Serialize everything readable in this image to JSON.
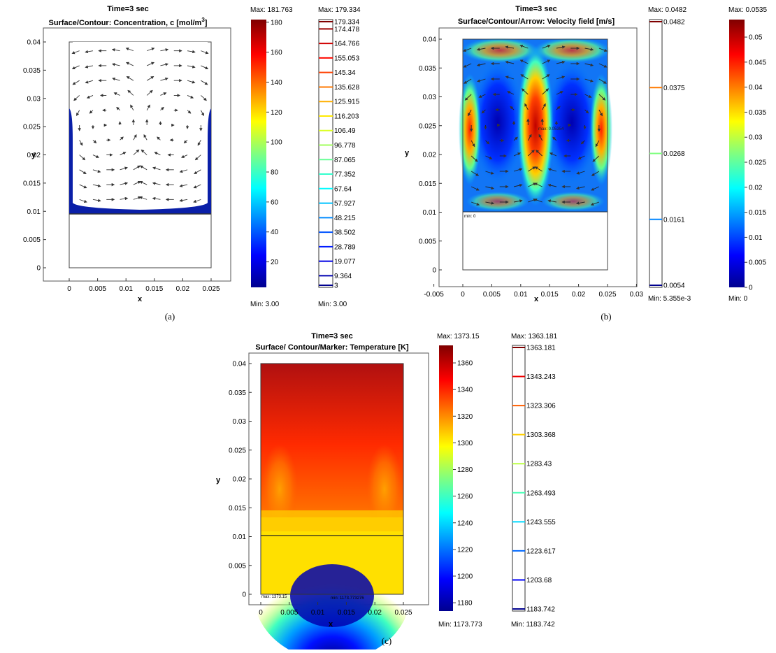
{
  "panels": {
    "a": {
      "label": "(a)",
      "time": "Time=3 sec",
      "title": "Surface/Contour: Concentration, c [mol/m",
      "title_sup": "3",
      "title_end": "]",
      "ylabel": "y",
      "xlabel": "x",
      "xticks": [
        "0",
        "0.005",
        "0.01",
        "0.015",
        "0.02",
        "0.025"
      ],
      "yticks": [
        "0",
        "0.005",
        "0.01",
        "0.015",
        "0.02",
        "0.025",
        "0.03",
        "0.035",
        "0.04"
      ],
      "surface_bar": {
        "max_label": "Max: 181.763",
        "min_label": "Min: 3.00",
        "ticks": [
          "20",
          "40",
          "60",
          "80",
          "100",
          "120",
          "140",
          "160",
          "180"
        ]
      },
      "contour_bar": {
        "max_label": "Max: 179.334",
        "min_label": "Min: 3.00",
        "levels": [
          "179.334",
          "174.478",
          "164.766",
          "155.053",
          "145.34",
          "135.628",
          "125.915",
          "116.203",
          "106.49",
          "96.778",
          "87.065",
          "77.352",
          "67.64",
          "57.927",
          "48.215",
          "38.502",
          "28.789",
          "19.077",
          "9.364",
          "3"
        ]
      }
    },
    "b": {
      "label": "(b)",
      "time": "Time=3 sec",
      "title": "Surface/Contour/Arrow: Velocity field [m/s]",
      "ylabel": "y",
      "xlabel": "x",
      "xticks": [
        "-0.005",
        "0",
        "0.005",
        "0.01",
        "0.015",
        "0.02",
        "0.025",
        "0.03"
      ],
      "yticks": [
        "0",
        "0.005",
        "0.01",
        "0.015",
        "0.02",
        "0.025",
        "0.03",
        "0.035",
        "0.04"
      ],
      "marker_min": "min: 0",
      "marker_max": "max: 0.05354",
      "contour_bar": {
        "max_label": "Max: 0.0482",
        "min_label": "Min: 5.355e-3",
        "levels": [
          "0.0482",
          "0.0375",
          "0.0268",
          "0.0161",
          "0.0054"
        ]
      },
      "surface_bar": {
        "max_label": "Max: 0.0535",
        "min_label": "Min: 0",
        "ticks": [
          "0",
          "0.005",
          "0.01",
          "0.015",
          "0.02",
          "0.025",
          "0.03",
          "0.035",
          "0.04",
          "0.045",
          "0.05"
        ]
      }
    },
    "c": {
      "label": "(c)",
      "time": "Time=3 sec",
      "title": "Surface/ Contour/Marker: Temperature [K]",
      "ylabel": "y",
      "xlabel": "x",
      "xticks": [
        "0",
        "0.005",
        "0.01",
        "0.015",
        "0.02",
        "0.025"
      ],
      "yticks": [
        "0",
        "0.005",
        "0.01",
        "0.015",
        "0.02",
        "0.025",
        "0.03",
        "0.035",
        "0.04"
      ],
      "marker_max": "max: 1373.15",
      "marker_min": "min: 1173.773276",
      "surface_bar": {
        "max_label": "Max: 1373.15",
        "min_label": "Min: 1173.773",
        "ticks": [
          "1180",
          "1200",
          "1220",
          "1240",
          "1260",
          "1280",
          "1300",
          "1320",
          "1340",
          "1360"
        ]
      },
      "contour_bar": {
        "max_label": "Max: 1363.181",
        "min_label": "Min: 1183.742",
        "levels": [
          "1363.181",
          "1343.243",
          "1323.306",
          "1303.368",
          "1283.43",
          "1263.493",
          "1243.555",
          "1223.617",
          "1203.68",
          "1183.742"
        ]
      }
    }
  },
  "chart_data": [
    {
      "type": "heatmap",
      "panel": "a",
      "title": "Surface/Contour: Concentration, c [mol/m3]",
      "xlabel": "x",
      "ylabel": "y",
      "xlim": [
        -0.003,
        0.028
      ],
      "ylim": [
        -0.003,
        0.042
      ],
      "domain_x": [
        0,
        0.025
      ],
      "domain_y": [
        0,
        0.04
      ],
      "colorbar": {
        "min": 3.0,
        "max": 181.763,
        "ticks": [
          20,
          40,
          60,
          80,
          100,
          120,
          140,
          160,
          180
        ]
      },
      "contour_levels": [
        179.334,
        174.478,
        164.766,
        155.053,
        145.34,
        135.628,
        125.915,
        116.203,
        106.49,
        96.778,
        87.065,
        77.352,
        67.64,
        57.927,
        48.215,
        38.502,
        28.789,
        19.077,
        9.364,
        3
      ],
      "arrows": true
    },
    {
      "type": "heatmap",
      "panel": "b",
      "title": "Surface/Contour/Arrow: Velocity field [m/s]",
      "xlabel": "x",
      "ylabel": "y",
      "xlim": [
        -0.005,
        0.03
      ],
      "ylim": [
        -0.002,
        0.042
      ],
      "domain_x": [
        0,
        0.025
      ],
      "domain_y": [
        0.01,
        0.04
      ],
      "colorbar": {
        "min": 0,
        "max": 0.0535,
        "ticks": [
          0,
          0.005,
          0.01,
          0.015,
          0.02,
          0.025,
          0.03,
          0.035,
          0.04,
          0.045,
          0.05
        ]
      },
      "contour_levels": [
        0.0482,
        0.0375,
        0.0268,
        0.0161,
        0.0054
      ],
      "arrows": true
    },
    {
      "type": "heatmap",
      "panel": "c",
      "title": "Surface/ Contour/Marker: Temperature [K]",
      "xlabel": "x",
      "ylabel": "y",
      "xlim": [
        -0.003,
        0.028
      ],
      "ylim": [
        -0.001,
        0.041
      ],
      "domain_x": [
        0,
        0.025
      ],
      "domain_y": [
        0,
        0.04
      ],
      "colorbar": {
        "min": 1173.773,
        "max": 1373.15,
        "ticks": [
          1180,
          1200,
          1220,
          1240,
          1260,
          1280,
          1300,
          1320,
          1340,
          1360
        ]
      },
      "contour_levels": [
        1363.181,
        1343.243,
        1323.306,
        1303.368,
        1283.43,
        1263.493,
        1243.555,
        1223.617,
        1203.68,
        1183.742
      ],
      "interface_y": 0.01,
      "arrows": false
    }
  ]
}
